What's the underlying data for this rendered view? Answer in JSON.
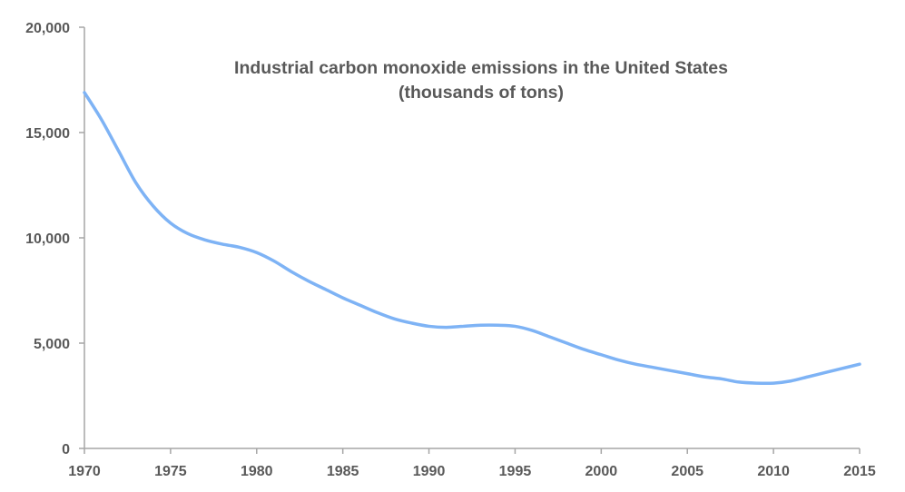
{
  "chart_data": {
    "type": "line",
    "title": "Industrial carbon monoxide emissions in the United States",
    "subtitle": "(thousands of tons)",
    "xlabel": "",
    "ylabel": "",
    "xlim": [
      1970,
      2015
    ],
    "ylim": [
      0,
      20000
    ],
    "x_ticks": [
      1970,
      1975,
      1980,
      1985,
      1990,
      1995,
      2000,
      2005,
      2010,
      2015
    ],
    "y_ticks": [
      0,
      5000,
      10000,
      15000,
      20000
    ],
    "y_tick_labels": [
      "0",
      "5,000",
      "10,000",
      "15,000",
      "20,000"
    ],
    "grid": false,
    "legend": "none",
    "series": [
      {
        "color": "#7eb3f5",
        "x": [
          1970,
          1971,
          1972,
          1973,
          1974,
          1975,
          1976,
          1977,
          1978,
          1979,
          1980,
          1981,
          1982,
          1983,
          1984,
          1985,
          1986,
          1987,
          1988,
          1989,
          1990,
          1991,
          1992,
          1993,
          1994,
          1995,
          1996,
          1997,
          1998,
          1999,
          2000,
          2001,
          2002,
          2003,
          2004,
          2005,
          2006,
          2007,
          2008,
          2009,
          2010,
          2011,
          2012,
          2013,
          2014,
          2015
        ],
        "values": [
          16900,
          15600,
          14100,
          12600,
          11500,
          10700,
          10200,
          9900,
          9700,
          9550,
          9300,
          8900,
          8400,
          7950,
          7550,
          7150,
          6800,
          6450,
          6150,
          5950,
          5800,
          5750,
          5800,
          5850,
          5850,
          5800,
          5600,
          5300,
          5000,
          4700,
          4450,
          4200,
          4000,
          3850,
          3700,
          3550,
          3400,
          3300,
          3150,
          3100,
          3100,
          3200,
          3400,
          3600,
          3800,
          4000
        ]
      }
    ]
  }
}
